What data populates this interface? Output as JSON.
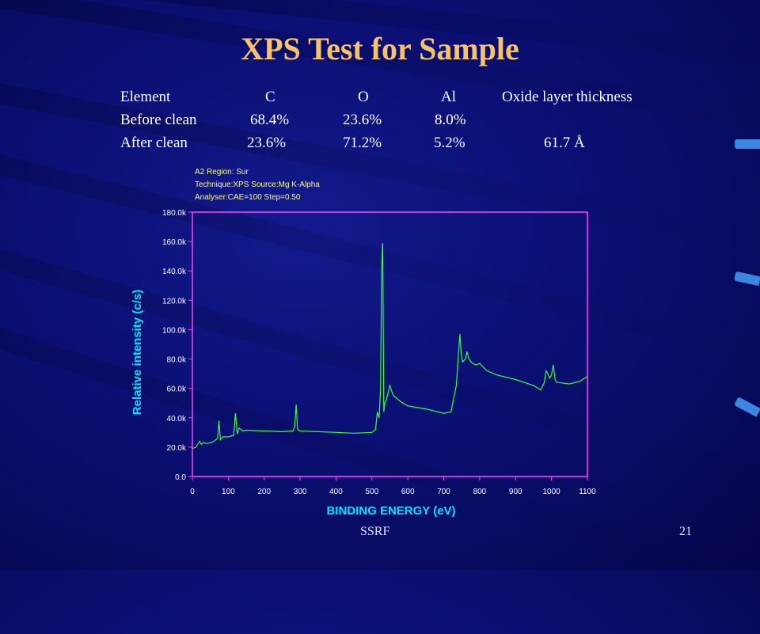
{
  "slide": {
    "title": "XPS Test for Sample",
    "footer_left": "SSRF",
    "page_number": "21"
  },
  "table": {
    "headers": [
      "Element",
      "C",
      "O",
      "Al",
      "Oxide layer thickness"
    ],
    "rows": [
      [
        "Before clean",
        "68.4%",
        "23.6%",
        "8.0%",
        ""
      ],
      [
        "After clean",
        "23.6%",
        "71.2%",
        "5.2%",
        "61.7 Å"
      ]
    ]
  },
  "colors": {
    "title": "#f7c26a",
    "trace": "#33ff33",
    "axis_frame": "#ff44ff",
    "axis_label": "#00e5ff",
    "tick_text": "#ffffff",
    "header_text": "#ffff66"
  },
  "chart_data": {
    "type": "line",
    "header_lines": [
      "A2   Region: Sur",
      "Technique:XPS     Source:Mg K-Alpha",
      "Analyser:CAE=100      Step=0.50"
    ],
    "xlabel": "BINDING ENERGY (eV)",
    "ylabel": "Relative intensity (c/s)",
    "xlim": [
      0,
      1100
    ],
    "ylim": [
      0,
      180000
    ],
    "x_ticks": [
      "0",
      "100",
      "200",
      "300",
      "400",
      "500",
      "600",
      "700",
      "800",
      "900",
      "1000",
      "1100"
    ],
    "y_ticks": [
      "0.0",
      "20.0k",
      "40.0k",
      "60.0k",
      "80.0k",
      "100.0k",
      "120.0k",
      "140.0k",
      "160.0k",
      "180.0k"
    ],
    "grid": false,
    "series": [
      {
        "x": [
          0,
          10,
          20,
          25,
          30,
          40,
          50,
          60,
          70,
          74,
          78,
          85,
          100,
          115,
          120,
          125,
          130,
          140,
          150,
          200,
          250,
          280,
          285,
          289,
          293,
          300,
          350,
          400,
          450,
          500,
          510,
          515,
          520,
          524,
          527,
          529,
          530,
          531,
          533,
          536,
          540,
          545,
          550,
          555,
          560,
          580,
          600,
          650,
          700,
          720,
          735,
          740,
          745,
          748,
          752,
          760,
          765,
          770,
          780,
          790,
          800,
          820,
          850,
          900,
          950,
          970,
          980,
          985,
          990,
          995,
          1000,
          1005,
          1010,
          1015,
          1020,
          1050,
          1080,
          1100
        ],
        "y": [
          19000,
          20000,
          24000,
          22000,
          23000,
          22500,
          23000,
          24000,
          26000,
          38000,
          25000,
          27000,
          27000,
          28000,
          43000,
          29000,
          33000,
          31000,
          31500,
          31000,
          30500,
          31000,
          34000,
          49000,
          32000,
          31000,
          30500,
          30000,
          29500,
          30000,
          32000,
          44000,
          40000,
          60000,
          140000,
          155000,
          159000,
          120000,
          44000,
          50000,
          52000,
          57000,
          62000,
          58000,
          55000,
          51000,
          48000,
          46000,
          43000,
          44000,
          62000,
          80000,
          97000,
          85000,
          78000,
          80000,
          85000,
          80000,
          77000,
          76000,
          77000,
          72000,
          69000,
          66000,
          62000,
          59000,
          64000,
          72000,
          70000,
          67000,
          69000,
          76000,
          66000,
          64000,
          64000,
          63000,
          65000,
          68000
        ]
      }
    ]
  }
}
